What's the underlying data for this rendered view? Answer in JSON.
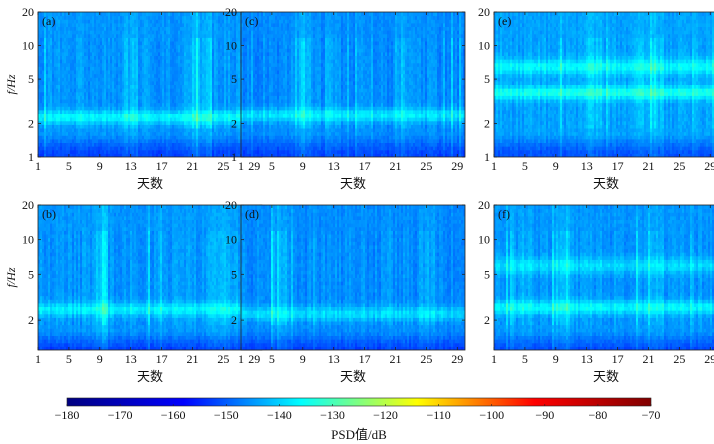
{
  "chart_data": [
    {
      "type": "heatmap",
      "panel_label": "(a)",
      "xlabel": "天数",
      "ylabel": "f/Hz",
      "x_ticks": [
        1,
        5,
        9,
        13,
        17,
        21,
        25,
        29
      ],
      "xlim": [
        1,
        30
      ],
      "y_scale": "log",
      "y_ticks": [
        1,
        2,
        5,
        10,
        20
      ],
      "ylim": [
        1,
        20
      ],
      "features": {
        "base_psd_db": -145,
        "band_hz": 2.3,
        "band_psd_db": -136,
        "upper_band_hz": null,
        "upper_band_psd_db": null,
        "low_freq_psd_db": -152,
        "strong_days": [
          13,
          21,
          22
        ]
      }
    },
    {
      "type": "heatmap",
      "panel_label": "(c)",
      "xlabel": "天数",
      "ylabel": "",
      "x_ticks": [
        1,
        5,
        9,
        13,
        17,
        21,
        25,
        29
      ],
      "xlim": [
        1,
        30
      ],
      "y_scale": "log",
      "y_ticks": [
        1,
        2,
        5,
        10,
        20
      ],
      "ylim": [
        1,
        20
      ],
      "features": {
        "base_psd_db": -146,
        "band_hz": 2.4,
        "band_psd_db": -138,
        "upper_band_hz": null,
        "upper_band_psd_db": null,
        "low_freq_psd_db": -152,
        "strong_days": [
          9,
          13,
          22
        ]
      }
    },
    {
      "type": "heatmap",
      "panel_label": "(e)",
      "xlabel": "天数",
      "ylabel": "",
      "x_ticks": [
        1,
        5,
        9,
        13,
        17,
        21,
        25,
        29
      ],
      "xlim": [
        1,
        30
      ],
      "y_scale": "log",
      "y_ticks": [
        1,
        2,
        5,
        10,
        20
      ],
      "ylim": [
        1,
        20
      ],
      "features": {
        "base_psd_db": -144,
        "band_hz": 3.8,
        "band_psd_db": -134,
        "upper_band_hz": 6.5,
        "upper_band_psd_db": -136,
        "low_freq_psd_db": -151,
        "strong_days": [
          14,
          20,
          22
        ]
      }
    },
    {
      "type": "heatmap",
      "panel_label": "(b)",
      "xlabel": "天数",
      "ylabel": "f/Hz",
      "x_ticks": [
        1,
        5,
        9,
        13,
        17,
        21,
        25,
        29
      ],
      "xlim": [
        1,
        30
      ],
      "y_scale": "log",
      "y_ticks": [
        2,
        5,
        10,
        20
      ],
      "ylim": [
        1.1,
        20
      ],
      "features": {
        "base_psd_db": -145,
        "band_hz": 2.5,
        "band_psd_db": -137,
        "upper_band_hz": null,
        "upper_band_psd_db": null,
        "low_freq_psd_db": -153,
        "strong_days": [
          9,
          24,
          26
        ]
      }
    },
    {
      "type": "heatmap",
      "panel_label": "(d)",
      "xlabel": "天数",
      "ylabel": "",
      "x_ticks": [
        1,
        5,
        9,
        13,
        17,
        21,
        25,
        29
      ],
      "xlim": [
        1,
        30
      ],
      "y_scale": "log",
      "y_ticks": [
        2,
        5,
        10,
        20
      ],
      "ylim": [
        1.1,
        20
      ],
      "features": {
        "base_psd_db": -146,
        "band_hz": 2.3,
        "band_psd_db": -139,
        "upper_band_hz": null,
        "upper_band_psd_db": null,
        "low_freq_psd_db": -153,
        "strong_days": [
          6,
          25
        ]
      }
    },
    {
      "type": "heatmap",
      "panel_label": "(f)",
      "xlabel": "天数",
      "ylabel": "",
      "x_ticks": [
        1,
        5,
        9,
        13,
        17,
        21,
        25,
        29
      ],
      "xlim": [
        1,
        30
      ],
      "y_scale": "log",
      "y_ticks": [
        2,
        5,
        10,
        20
      ],
      "ylim": [
        1.1,
        20
      ],
      "features": {
        "base_psd_db": -145,
        "band_hz": 2.6,
        "band_psd_db": -136,
        "upper_band_hz": 6.0,
        "upper_band_psd_db": -139,
        "low_freq_psd_db": -152,
        "strong_days": [
          5,
          10,
          22
        ]
      }
    }
  ],
  "colorbar": {
    "label": "PSD值/dB",
    "min": -180,
    "max": -70,
    "ticks": [
      -180,
      -170,
      -160,
      -150,
      -140,
      -130,
      -120,
      -110,
      -100,
      -90,
      -80,
      -70
    ],
    "tick_labels": [
      "−180",
      "−170",
      "−160",
      "−150",
      "−140",
      "−130",
      "−120",
      "−110",
      "−100",
      "−90",
      "−80",
      "−70"
    ],
    "colormap": "jet",
    "colormap_stops": [
      "#000080",
      "#0000ff",
      "#00ffff",
      "#ffff00",
      "#ff0000",
      "#800000"
    ]
  }
}
